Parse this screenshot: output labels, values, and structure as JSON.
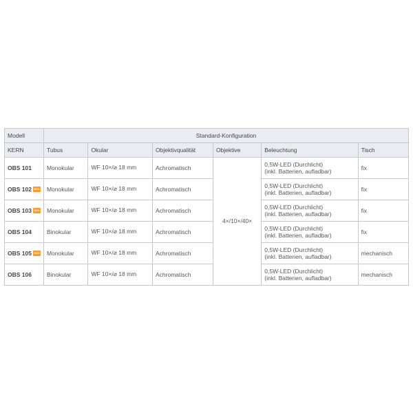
{
  "table": {
    "header": {
      "model_line1": "Modell",
      "model_line2": "KERN",
      "config_title": "Standard-Konfiguration",
      "columns": {
        "tubus": "Tubus",
        "okular": "Okular",
        "objq": "Objektivqualität",
        "objektive": "Objektive",
        "beleuchtung": "Beleuchtung",
        "tisch": "Tisch"
      }
    },
    "objective_merged": "4×/10×/40×",
    "rows": [
      {
        "model": "OBS 101",
        "badge": false,
        "tubus": "Monokular",
        "okular": "WF 10×/⌀ 18 mm",
        "objq": "Achromatisch",
        "light1": "0,5W-LED (Durchlicht)",
        "light2": "(inkl. Batterien, aufladbar)",
        "tisch": "fix"
      },
      {
        "model": "OBS 102",
        "badge": true,
        "tubus": "Monokular",
        "okular": "WF 10×/⌀ 18 mm",
        "objq": "Achromatisch",
        "light1": "0,5W-LED (Durchlicht)",
        "light2": "(inkl. Batterien, aufladbar)",
        "tisch": "fix"
      },
      {
        "model": "OBS 103",
        "badge": true,
        "tubus": "Monokular",
        "okular": "WF 10×/⌀ 18 mm",
        "objq": "Achromatisch",
        "light1": "0,5W-LED (Durchlicht)",
        "light2": "(inkl. Batterien, aufladbar)",
        "tisch": "fix"
      },
      {
        "model": "OBS 104",
        "badge": false,
        "tubus": "Binokular",
        "okular": "WF 10×/⌀ 18 mm",
        "objq": "Achromatisch",
        "light1": "0,5W-LED (Durchlicht)",
        "light2": "(inkl. Batterien, aufladbar)",
        "tisch": "fix"
      },
      {
        "model": "OBS 105",
        "badge": true,
        "tubus": "Monokular",
        "okular": "WF 10×/⌀ 18 mm",
        "objq": "Achromatisch",
        "light1": "0,5W-LED (Durchlicht)",
        "light2": "(inkl. Batterien, aufladbar)",
        "tisch": "mechanisch"
      },
      {
        "model": "OBS 106",
        "badge": false,
        "tubus": "Binokular",
        "okular": "WF 10×/⌀ 18 mm",
        "objq": "Achromatisch",
        "light1": "0,5W-LED (Durchlicht)",
        "light2": "(inkl. Batterien, aufladbar)",
        "tisch": "mechanisch"
      }
    ],
    "badge_text": "NEU",
    "colors": {
      "header_bg": "#e9edf1",
      "border": "#c8c8c8",
      "text": "#555555",
      "badge_bg": "#f59c2f"
    }
  }
}
